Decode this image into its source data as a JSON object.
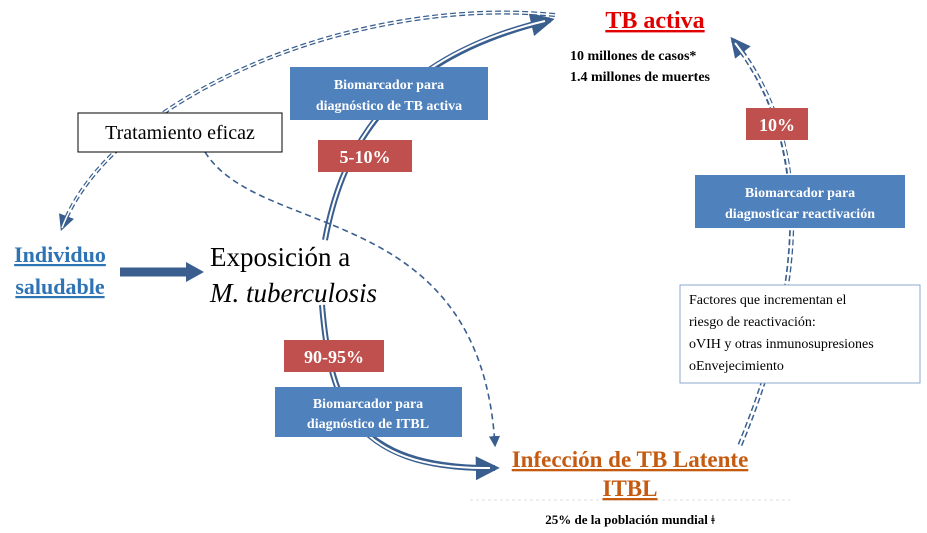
{
  "active": {
    "title": "TB activa",
    "stats": [
      "10 millones de casos*",
      "1.4 millones de muertes"
    ]
  },
  "treatment": "Tratamiento eficaz",
  "healthy": [
    "Individuo",
    "saludable"
  ],
  "exposure": [
    "Exposición a",
    "M. tuberculosis"
  ],
  "latent": {
    "title": [
      "Infección de TB Latente",
      "ITBL"
    ],
    "stat": "25% de la población mundial ǂ"
  },
  "rates": {
    "active": "5-10%",
    "latent": "90-95%",
    "reactivation": "10%"
  },
  "biomarkers": {
    "active": [
      "Biomarcador para",
      "diagnóstico de TB activa"
    ],
    "latent": [
      "Biomarcador para",
      "diagnóstico de ITBL"
    ],
    "reactivation": [
      "Biomarcador para",
      "diagnosticar reactivación"
    ]
  },
  "risk_factors": {
    "heading": [
      "Factores que incrementan el",
      "riesgo de reactivación:"
    ],
    "items": [
      "oVIH y otras inmunosupresiones",
      "oEnvejecimiento"
    ]
  }
}
